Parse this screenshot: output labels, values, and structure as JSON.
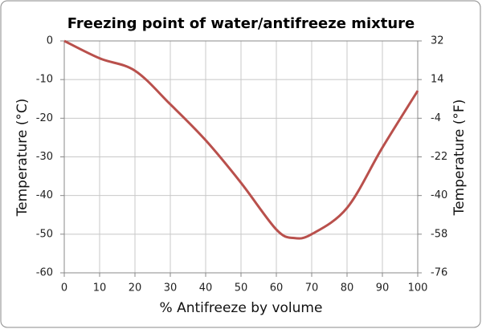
{
  "chart_data": {
    "type": "line",
    "title": "Freezing point of water/antifreeze mixture",
    "x_label": "% Antifreeze by volume",
    "y_label": "Temperature (°C)",
    "y2_label": "Temperature (°F)",
    "x": [
      0,
      10,
      20,
      30,
      40,
      50,
      60,
      65,
      70,
      80,
      90,
      100
    ],
    "series": [
      {
        "color": "#b9504c",
        "values": [
          0,
          -4.5,
          -7.7,
          -16.4,
          -25.7,
          -36.7,
          -48.8,
          -51,
          -50,
          -43.2,
          -27.6,
          -12.9
        ]
      }
    ],
    "xlim": [
      0,
      100
    ],
    "xticks": [
      0,
      10,
      20,
      30,
      40,
      50,
      60,
      70,
      80,
      90,
      100
    ],
    "ylim": [
      -60,
      0
    ],
    "yticks": [
      0,
      -10,
      -20,
      -30,
      -40,
      -50,
      -60
    ],
    "y2lim": [
      -76,
      32
    ],
    "y2ticks": [
      32,
      14,
      -4,
      -22,
      -40,
      -58,
      -76
    ],
    "grid": true
  }
}
